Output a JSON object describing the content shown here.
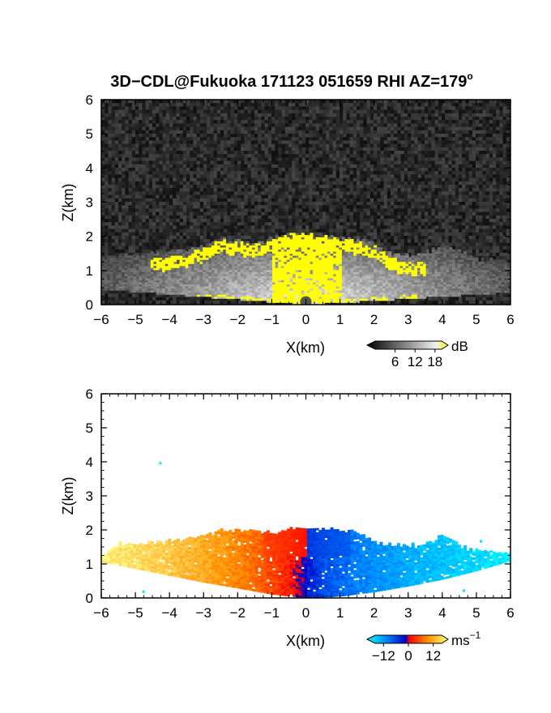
{
  "title": "3D−CDL@Fukuoka 171123 051659 RHI AZ=179",
  "title_degree": "o",
  "chart_data": [
    {
      "type": "heatmap",
      "quantity": "reflectivity",
      "xlabel": "X(km)",
      "ylabel": "Z(km)",
      "xlim": [
        -6,
        6
      ],
      "ylim": [
        0,
        6
      ],
      "xticks": [
        "−6",
        "−5",
        "−4",
        "−3",
        "−2",
        "−1",
        "0",
        "1",
        "2",
        "3",
        "4",
        "5",
        "6"
      ],
      "yticks": [
        "0",
        "1",
        "2",
        "3",
        "4",
        "5",
        "6"
      ],
      "grid": false,
      "colorbar": {
        "unit": "dB",
        "ticks": [
          6,
          12,
          18
        ],
        "tick_labels": [
          "6",
          "12",
          "18"
        ],
        "range": [
          0,
          20
        ],
        "colors": [
          "#000000",
          "#ffffff",
          "#ffff00"
        ]
      },
      "background_color": "#202020",
      "echo_top_km": [
        {
          "x": -6.0,
          "z": 1.35
        },
        {
          "x": -5.5,
          "z": 1.4
        },
        {
          "x": -5.0,
          "z": 1.45
        },
        {
          "x": -4.5,
          "z": 1.5
        },
        {
          "x": -4.0,
          "z": 1.55
        },
        {
          "x": -3.5,
          "z": 1.6
        },
        {
          "x": -3.0,
          "z": 1.7
        },
        {
          "x": -2.5,
          "z": 1.9
        },
        {
          "x": -2.0,
          "z": 1.85
        },
        {
          "x": -1.5,
          "z": 1.8
        },
        {
          "x": -1.0,
          "z": 1.9
        },
        {
          "x": -0.5,
          "z": 2.05
        },
        {
          "x": 0.0,
          "z": 2.05
        },
        {
          "x": 0.5,
          "z": 2.0
        },
        {
          "x": 1.0,
          "z": 1.9
        },
        {
          "x": 1.5,
          "z": 1.9
        },
        {
          "x": 2.0,
          "z": 1.75
        },
        {
          "x": 2.5,
          "z": 1.45
        },
        {
          "x": 3.0,
          "z": 1.4
        },
        {
          "x": 3.5,
          "z": 1.5
        },
        {
          "x": 4.0,
          "z": 1.75
        },
        {
          "x": 4.5,
          "z": 1.55
        },
        {
          "x": 5.0,
          "z": 1.3
        },
        {
          "x": 5.5,
          "z": 1.3
        },
        {
          "x": 6.0,
          "z": 1.3
        }
      ],
      "strong_echo_top_km": [
        {
          "x": -4.6,
          "z": 1.3
        },
        {
          "x": -4.0,
          "z": 1.35
        },
        {
          "x": -3.5,
          "z": 1.45
        },
        {
          "x": -3.0,
          "z": 1.6
        },
        {
          "x": -2.5,
          "z": 1.85
        },
        {
          "x": -2.0,
          "z": 1.8
        },
        {
          "x": -1.5,
          "z": 1.75
        },
        {
          "x": -1.0,
          "z": 1.85
        },
        {
          "x": -0.5,
          "z": 2.05
        },
        {
          "x": 0.0,
          "z": 2.05
        },
        {
          "x": 0.5,
          "z": 1.95
        },
        {
          "x": 1.0,
          "z": 1.85
        },
        {
          "x": 1.5,
          "z": 1.85
        },
        {
          "x": 2.0,
          "z": 1.65
        },
        {
          "x": 2.5,
          "z": 1.3
        },
        {
          "x": 3.0,
          "z": 1.25
        },
        {
          "x": 3.5,
          "z": 1.2
        }
      ]
    },
    {
      "type": "heatmap",
      "quantity": "doppler_velocity",
      "xlabel": "X(km)",
      "ylabel": "Z(km)",
      "xlim": [
        -6,
        6
      ],
      "ylim": [
        0,
        6
      ],
      "xticks": [
        "−6",
        "−5",
        "−4",
        "−3",
        "−2",
        "−1",
        "0",
        "1",
        "2",
        "3",
        "4",
        "5",
        "6"
      ],
      "yticks": [
        "0",
        "1",
        "2",
        "3",
        "4",
        "5",
        "6"
      ],
      "grid": false,
      "colorbar": {
        "unit": "ms",
        "unit_exponent": "−1",
        "ticks": [
          -12,
          0,
          12
        ],
        "tick_labels": [
          "−12",
          "0",
          "12"
        ],
        "range": [
          -16,
          16
        ],
        "colors": [
          "#00ffff",
          "#0060ff",
          "#0000cc",
          "#ff0000",
          "#ff8000",
          "#ffff80"
        ]
      },
      "background_color": "#ffffff",
      "echo_top_km": [
        {
          "x": -6.0,
          "z": 1.25
        },
        {
          "x": -5.5,
          "z": 1.6
        },
        {
          "x": -5.0,
          "z": 1.55
        },
        {
          "x": -4.5,
          "z": 1.6
        },
        {
          "x": -4.0,
          "z": 1.65
        },
        {
          "x": -3.5,
          "z": 1.7
        },
        {
          "x": -3.0,
          "z": 1.8
        },
        {
          "x": -2.5,
          "z": 1.95
        },
        {
          "x": -2.0,
          "z": 2.0
        },
        {
          "x": -1.5,
          "z": 1.95
        },
        {
          "x": -1.0,
          "z": 1.9
        },
        {
          "x": -0.5,
          "z": 2.05
        },
        {
          "x": 0.0,
          "z": 2.05
        },
        {
          "x": 0.5,
          "z": 2.0
        },
        {
          "x": 1.0,
          "z": 1.95
        },
        {
          "x": 1.5,
          "z": 1.9
        },
        {
          "x": 2.0,
          "z": 1.6
        },
        {
          "x": 2.5,
          "z": 1.55
        },
        {
          "x": 3.0,
          "z": 1.5
        },
        {
          "x": 3.5,
          "z": 1.6
        },
        {
          "x": 4.0,
          "z": 1.8
        },
        {
          "x": 4.5,
          "z": 1.5
        },
        {
          "x": 5.0,
          "z": 1.4
        },
        {
          "x": 5.5,
          "z": 1.35
        },
        {
          "x": 6.0,
          "z": 1.3
        }
      ],
      "echo_bottom_km": [
        {
          "x": -6.0,
          "z": 1.05
        },
        {
          "x": -5.0,
          "z": 0.85
        },
        {
          "x": -4.0,
          "z": 0.65
        },
        {
          "x": -3.0,
          "z": 0.45
        },
        {
          "x": -2.0,
          "z": 0.28
        },
        {
          "x": -1.0,
          "z": 0.1
        },
        {
          "x": 0.0,
          "z": 0.0
        },
        {
          "x": 1.0,
          "z": 0.05
        },
        {
          "x": 2.0,
          "z": 0.18
        },
        {
          "x": 3.0,
          "z": 0.35
        },
        {
          "x": 4.0,
          "z": 0.55
        },
        {
          "x": 5.0,
          "z": 0.8
        },
        {
          "x": 6.0,
          "z": 1.1
        }
      ],
      "velocity_by_x_ms": [
        {
          "x": -6.0,
          "v": 15
        },
        {
          "x": -4.5,
          "v": 13
        },
        {
          "x": -3.0,
          "v": 10
        },
        {
          "x": -1.5,
          "v": 6
        },
        {
          "x": -0.5,
          "v": 2
        },
        {
          "x": 0.0,
          "v": -2
        },
        {
          "x": 0.5,
          "v": -5
        },
        {
          "x": 1.5,
          "v": -8
        },
        {
          "x": 3.0,
          "v": -11
        },
        {
          "x": 4.5,
          "v": -13
        },
        {
          "x": 6.0,
          "v": -15
        }
      ],
      "isolated_points_km": [
        {
          "x": -4.3,
          "z": 4.0
        },
        {
          "x": 5.1,
          "z": 1.7
        },
        {
          "x": -4.8,
          "z": 0.22
        },
        {
          "x": 4.6,
          "z": 0.25
        }
      ]
    }
  ]
}
